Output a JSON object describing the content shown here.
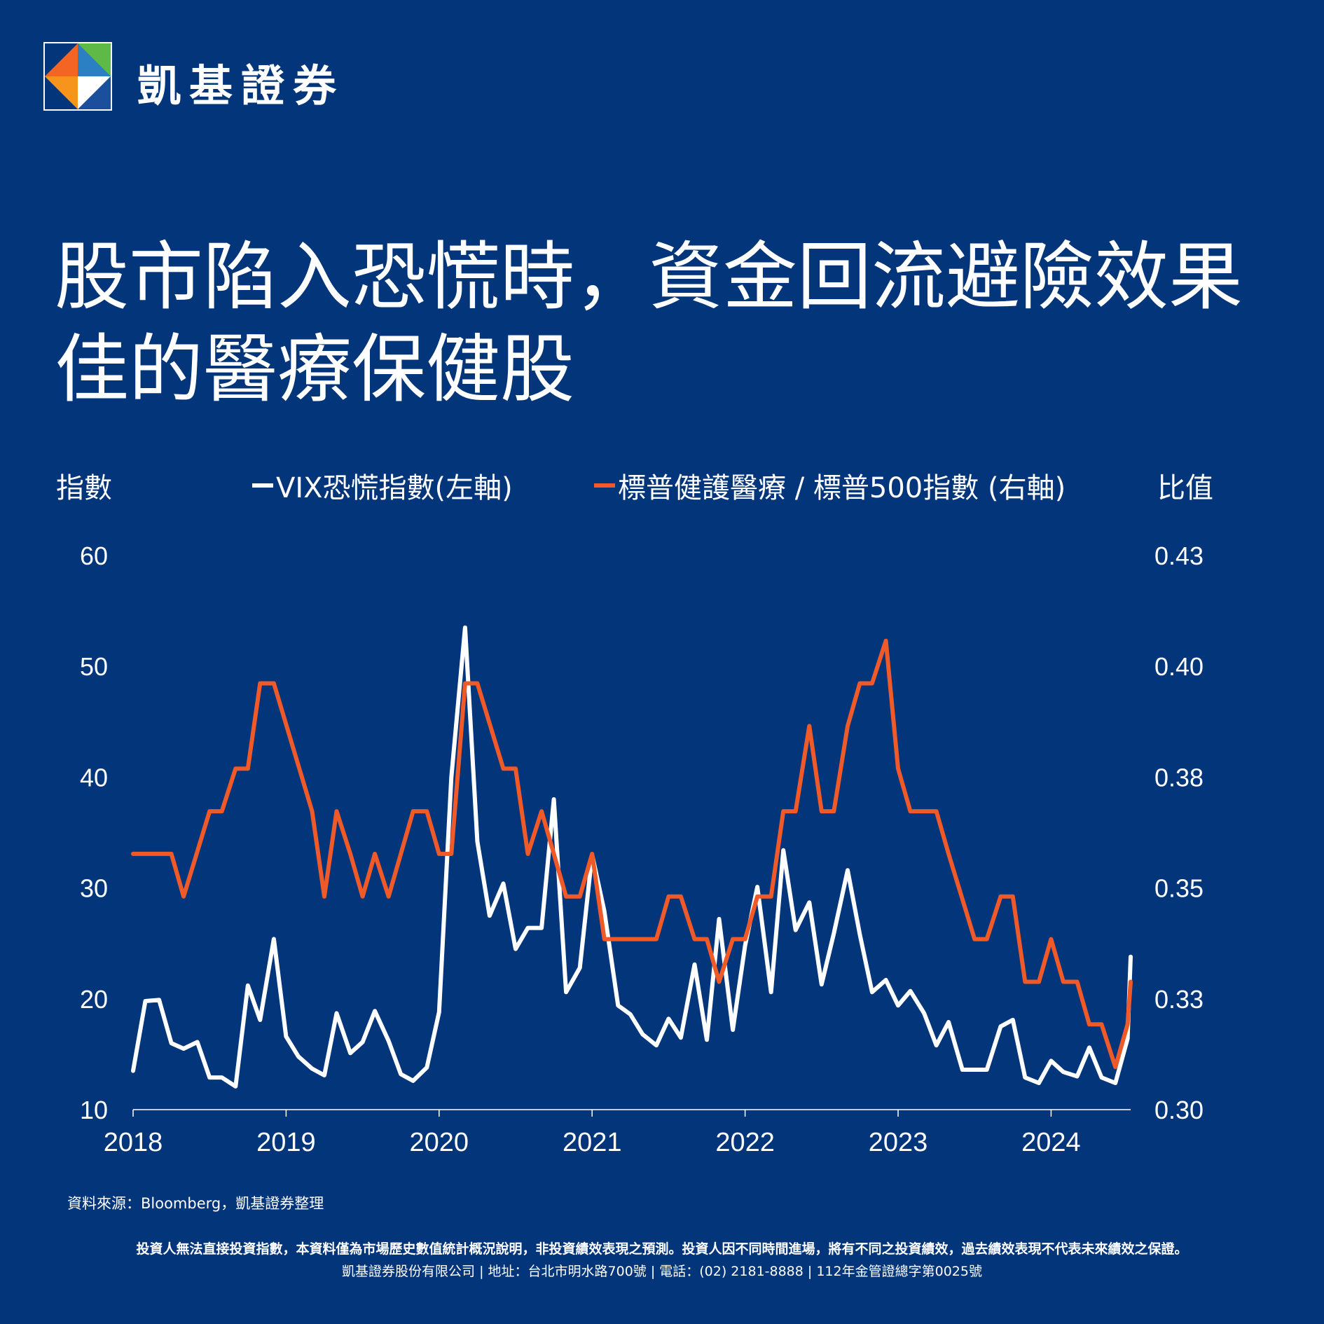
{
  "brand": {
    "name": "凱基證券",
    "logo_colors": [
      "#f26522",
      "#2b7fc3",
      "#5fb947",
      "#ffffff"
    ]
  },
  "title": "股市陷入恐慌時，資金回流避險效果佳的醫療保健股",
  "left_axis_title": "指數",
  "right_axis_title": "比值",
  "legend": {
    "vix": "VIX恐慌指數(左軸)",
    "ratio": "標普健護醫療 / 標普500指數 (右軸)"
  },
  "colors": {
    "background": "#03357a",
    "vix": "#ffffff",
    "ratio": "#f05a28",
    "text": "#ffffff"
  },
  "chart_data": {
    "type": "line",
    "x_tick_labels": [
      "2018",
      "2019",
      "2020",
      "2021",
      "2022",
      "2023",
      "2024"
    ],
    "xlim": [
      2018.0,
      2024.52
    ],
    "left_axis": {
      "ylim": [
        10,
        60
      ],
      "tick_labels": [
        "10",
        "20",
        "30",
        "40",
        "50",
        "60"
      ]
    },
    "right_axis": {
      "ylim": [
        0.3,
        0.43
      ],
      "tick_labels": [
        "0.30",
        "0.33",
        "0.35",
        "0.38",
        "0.40",
        "0.43"
      ]
    },
    "grid": false,
    "legend_position": "top",
    "series": [
      {
        "name": "VIX恐慌指數(左軸)",
        "axis": "left",
        "points": [
          [
            2018.0,
            13.5
          ],
          [
            2018.08,
            19.8
          ],
          [
            2018.17,
            19.9
          ],
          [
            2018.25,
            16.0
          ],
          [
            2018.33,
            15.5
          ],
          [
            2018.42,
            16.1
          ],
          [
            2018.5,
            12.9
          ],
          [
            2018.58,
            12.9
          ],
          [
            2018.67,
            12.1
          ],
          [
            2018.75,
            21.2
          ],
          [
            2018.83,
            18.1
          ],
          [
            2018.92,
            25.4
          ],
          [
            2019.0,
            16.6
          ],
          [
            2019.08,
            14.8
          ],
          [
            2019.17,
            13.7
          ],
          [
            2019.25,
            13.1
          ],
          [
            2019.33,
            18.7
          ],
          [
            2019.42,
            15.1
          ],
          [
            2019.5,
            16.1
          ],
          [
            2019.58,
            18.9
          ],
          [
            2019.67,
            16.2
          ],
          [
            2019.75,
            13.2
          ],
          [
            2019.83,
            12.6
          ],
          [
            2019.92,
            13.8
          ],
          [
            2020.0,
            18.8
          ],
          [
            2020.08,
            40.0
          ],
          [
            2020.17,
            53.5
          ],
          [
            2020.25,
            34.2
          ],
          [
            2020.33,
            27.5
          ],
          [
            2020.42,
            30.4
          ],
          [
            2020.5,
            24.5
          ],
          [
            2020.58,
            26.4
          ],
          [
            2020.67,
            26.4
          ],
          [
            2020.75,
            38.0
          ],
          [
            2020.83,
            20.6
          ],
          [
            2020.92,
            22.8
          ],
          [
            2021.0,
            33.0
          ],
          [
            2021.08,
            27.9
          ],
          [
            2021.17,
            19.4
          ],
          [
            2021.25,
            18.6
          ],
          [
            2021.33,
            16.8
          ],
          [
            2021.42,
            15.8
          ],
          [
            2021.5,
            18.2
          ],
          [
            2021.58,
            16.5
          ],
          [
            2021.67,
            23.1
          ],
          [
            2021.75,
            16.3
          ],
          [
            2021.83,
            27.2
          ],
          [
            2021.92,
            17.2
          ],
          [
            2022.0,
            24.8
          ],
          [
            2022.08,
            30.1
          ],
          [
            2022.17,
            20.6
          ],
          [
            2022.25,
            33.4
          ],
          [
            2022.33,
            26.2
          ],
          [
            2022.42,
            28.7
          ],
          [
            2022.5,
            21.3
          ],
          [
            2022.58,
            25.9
          ],
          [
            2022.67,
            31.6
          ],
          [
            2022.75,
            25.8
          ],
          [
            2022.83,
            20.6
          ],
          [
            2022.92,
            21.7
          ],
          [
            2023.0,
            19.4
          ],
          [
            2023.08,
            20.7
          ],
          [
            2023.17,
            18.7
          ],
          [
            2023.25,
            15.8
          ],
          [
            2023.33,
            17.9
          ],
          [
            2023.42,
            13.6
          ],
          [
            2023.5,
            13.6
          ],
          [
            2023.58,
            13.6
          ],
          [
            2023.67,
            17.5
          ],
          [
            2023.75,
            18.1
          ],
          [
            2023.83,
            12.9
          ],
          [
            2023.92,
            12.4
          ],
          [
            2024.0,
            14.4
          ],
          [
            2024.08,
            13.4
          ],
          [
            2024.17,
            13.0
          ],
          [
            2024.25,
            15.6
          ],
          [
            2024.33,
            12.9
          ],
          [
            2024.42,
            12.4
          ],
          [
            2024.5,
            16.4
          ],
          [
            2024.52,
            23.8
          ]
        ]
      },
      {
        "name": "標普健護醫療 / 標普500指數 (右軸)",
        "axis": "right",
        "points": [
          [
            2018.0,
            0.36
          ],
          [
            2018.25,
            0.36
          ],
          [
            2018.33,
            0.35
          ],
          [
            2018.5,
            0.37
          ],
          [
            2018.58,
            0.37
          ],
          [
            2018.67,
            0.38
          ],
          [
            2018.75,
            0.38
          ],
          [
            2018.83,
            0.4
          ],
          [
            2018.92,
            0.4
          ],
          [
            2019.17,
            0.37
          ],
          [
            2019.25,
            0.35
          ],
          [
            2019.33,
            0.37
          ],
          [
            2019.42,
            0.36
          ],
          [
            2019.5,
            0.35
          ],
          [
            2019.58,
            0.36
          ],
          [
            2019.67,
            0.35
          ],
          [
            2019.83,
            0.37
          ],
          [
            2019.92,
            0.37
          ],
          [
            2020.0,
            0.36
          ],
          [
            2020.08,
            0.36
          ],
          [
            2020.17,
            0.4
          ],
          [
            2020.25,
            0.4
          ],
          [
            2020.42,
            0.38
          ],
          [
            2020.5,
            0.38
          ],
          [
            2020.58,
            0.36
          ],
          [
            2020.67,
            0.37
          ],
          [
            2020.83,
            0.35
          ],
          [
            2020.92,
            0.35
          ],
          [
            2021.0,
            0.36
          ],
          [
            2021.08,
            0.34
          ],
          [
            2021.42,
            0.34
          ],
          [
            2021.5,
            0.35
          ],
          [
            2021.58,
            0.35
          ],
          [
            2021.67,
            0.34
          ],
          [
            2021.75,
            0.34
          ],
          [
            2021.83,
            0.33
          ],
          [
            2021.92,
            0.34
          ],
          [
            2022.0,
            0.34
          ],
          [
            2022.08,
            0.35
          ],
          [
            2022.17,
            0.35
          ],
          [
            2022.25,
            0.37
          ],
          [
            2022.33,
            0.37
          ],
          [
            2022.42,
            0.39
          ],
          [
            2022.5,
            0.37
          ],
          [
            2022.58,
            0.37
          ],
          [
            2022.67,
            0.39
          ],
          [
            2022.75,
            0.4
          ],
          [
            2022.83,
            0.4
          ],
          [
            2022.92,
            0.41
          ],
          [
            2023.0,
            0.38
          ],
          [
            2023.08,
            0.37
          ],
          [
            2023.25,
            0.37
          ],
          [
            2023.33,
            0.36
          ],
          [
            2023.5,
            0.34
          ],
          [
            2023.58,
            0.34
          ],
          [
            2023.67,
            0.35
          ],
          [
            2023.75,
            0.35
          ],
          [
            2023.83,
            0.33
          ],
          [
            2023.92,
            0.33
          ],
          [
            2024.0,
            0.34
          ],
          [
            2024.08,
            0.33
          ],
          [
            2024.17,
            0.33
          ],
          [
            2024.25,
            0.32
          ],
          [
            2024.33,
            0.32
          ],
          [
            2024.42,
            0.31
          ],
          [
            2024.5,
            0.32
          ],
          [
            2024.52,
            0.33
          ]
        ]
      }
    ]
  },
  "source": "資料來源：Bloomberg，凱基證券整理",
  "disclaimer": "投資人無法直接投資指數，本資料僅為市場歷史數值統計概況說明，非投資績效表現之預測。投資人因不同時間進場，將有不同之投資績效，過去績效表現不代表未來績效之保證。",
  "company_info": "凱基證券股份有限公司 | 地址：台北市明水路700號 | 電話：(02) 2181-8888 | 112年金管證總字第0025號"
}
